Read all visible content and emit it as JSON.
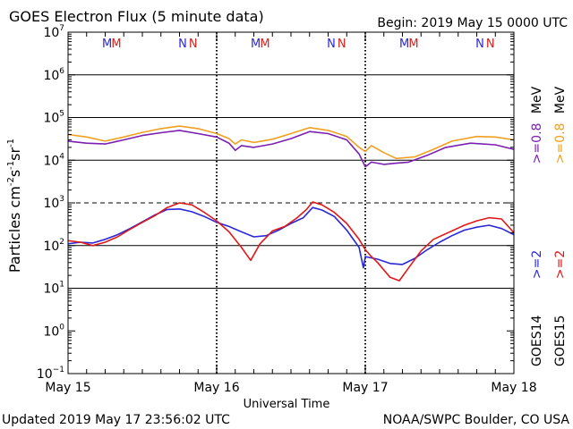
{
  "chart_data": {
    "type": "line",
    "title": "GOES Electron Flux (5 minute data)",
    "begin_label": "Begin: 2019 May 15 0000 UTC",
    "xlabel": "Universal Time",
    "ylabel": "Particles cm",
    "ylabel_exp1": "-2",
    "ylabel_s": "s",
    "ylabel_exp2": "-1",
    "ylabel_sr": "sr",
    "ylabel_exp3": "-1",
    "x_unit": "hours since 2019 May 15 0000 UTC",
    "xlim": [
      0,
      72
    ],
    "x_ticks": [
      {
        "x": 0,
        "label": "May 15"
      },
      {
        "x": 24,
        "label": "May 16"
      },
      {
        "x": 48,
        "label": "May 17"
      },
      {
        "x": 72,
        "label": "May 18"
      }
    ],
    "yscale": "log",
    "ylim": [
      0.1,
      10000000
    ],
    "y_ticks": [
      {
        "exp": -1,
        "label_base": "10",
        "label_exp": "−1"
      },
      {
        "exp": 0,
        "label_base": "10",
        "label_exp": "0"
      },
      {
        "exp": 1,
        "label_base": "10",
        "label_exp": "1"
      },
      {
        "exp": 2,
        "label_base": "10",
        "label_exp": "2"
      },
      {
        "exp": 3,
        "label_base": "10",
        "label_exp": "3"
      },
      {
        "exp": 4,
        "label_base": "10",
        "label_exp": "4"
      },
      {
        "exp": 5,
        "label_base": "10",
        "label_exp": "5"
      },
      {
        "exp": 6,
        "label_base": "10",
        "label_exp": "6"
      },
      {
        "exp": 7,
        "label_base": "10",
        "label_exp": "7"
      }
    ],
    "threshold_dashed": 1000,
    "grid_solid_y": [
      10,
      100,
      10000,
      100000,
      1000000
    ],
    "markers": [
      {
        "x": 6.3,
        "text": "M",
        "color": "#2a28d8"
      },
      {
        "x": 7.8,
        "text": "M",
        "color": "#d8201e"
      },
      {
        "x": 18.5,
        "text": "N",
        "color": "#2a28d8"
      },
      {
        "x": 20.2,
        "text": "N",
        "color": "#d8201e"
      },
      {
        "x": 30.3,
        "text": "M",
        "color": "#2a28d8"
      },
      {
        "x": 31.8,
        "text": "M",
        "color": "#d8201e"
      },
      {
        "x": 42.5,
        "text": "N",
        "color": "#2a28d8"
      },
      {
        "x": 44.2,
        "text": "N",
        "color": "#d8201e"
      },
      {
        "x": 54.3,
        "text": "M",
        "color": "#2a28d8"
      },
      {
        "x": 55.8,
        "text": "M",
        "color": "#d8201e"
      },
      {
        "x": 66.5,
        "text": "N",
        "color": "#2a28d8"
      },
      {
        "x": 68.2,
        "text": "N",
        "color": "#d8201e"
      }
    ],
    "series": [
      {
        "name": ">=0.8 MeV GOES15",
        "color": "#f0a020",
        "points": [
          [
            0,
            40000
          ],
          [
            3,
            35000
          ],
          [
            6,
            28000
          ],
          [
            9,
            35000
          ],
          [
            12,
            45000
          ],
          [
            15,
            55000
          ],
          [
            18,
            63000
          ],
          [
            21,
            55000
          ],
          [
            24,
            42000
          ],
          [
            26,
            32000
          ],
          [
            27,
            24000
          ],
          [
            28,
            30000
          ],
          [
            30,
            26000
          ],
          [
            33,
            31000
          ],
          [
            36,
            42000
          ],
          [
            39,
            58000
          ],
          [
            42,
            50000
          ],
          [
            45,
            36000
          ],
          [
            47,
            20000
          ],
          [
            48,
            16000
          ],
          [
            49,
            22000
          ],
          [
            51,
            15000
          ],
          [
            53,
            11000
          ],
          [
            56,
            12000
          ],
          [
            59,
            18000
          ],
          [
            62,
            28000
          ],
          [
            66,
            36000
          ],
          [
            69,
            35000
          ],
          [
            72,
            30000
          ]
        ]
      },
      {
        "name": ">=0.8 MeV GOES14",
        "color": "#7a1fb0",
        "points": [
          [
            0,
            28000
          ],
          [
            3,
            25000
          ],
          [
            6,
            24000
          ],
          [
            9,
            30000
          ],
          [
            12,
            38000
          ],
          [
            15,
            44000
          ],
          [
            18,
            50000
          ],
          [
            21,
            42000
          ],
          [
            24,
            35000
          ],
          [
            26,
            25000
          ],
          [
            27,
            17000
          ],
          [
            28,
            22000
          ],
          [
            30,
            20000
          ],
          [
            33,
            24000
          ],
          [
            36,
            32000
          ],
          [
            39,
            47000
          ],
          [
            42,
            42000
          ],
          [
            45,
            30000
          ],
          [
            47,
            14000
          ],
          [
            48,
            7000
          ],
          [
            49,
            9000
          ],
          [
            51,
            8000
          ],
          [
            53,
            8500
          ],
          [
            55,
            9000
          ],
          [
            58,
            13000
          ],
          [
            61,
            20000
          ],
          [
            65,
            25000
          ],
          [
            69,
            23000
          ],
          [
            72,
            18000
          ]
        ]
      },
      {
        "name": ">=2 MeV GOES14",
        "color": "#2a28d8",
        "points": [
          [
            0,
            110
          ],
          [
            2,
            120
          ],
          [
            4,
            115
          ],
          [
            6,
            140
          ],
          [
            8,
            180
          ],
          [
            10,
            250
          ],
          [
            12,
            360
          ],
          [
            14,
            520
          ],
          [
            16,
            700
          ],
          [
            18,
            720
          ],
          [
            20,
            620
          ],
          [
            22,
            480
          ],
          [
            24,
            350
          ],
          [
            26,
            280
          ],
          [
            28,
            210
          ],
          [
            30,
            160
          ],
          [
            32,
            170
          ],
          [
            34,
            230
          ],
          [
            36,
            330
          ],
          [
            38,
            450
          ],
          [
            39.5,
            780
          ],
          [
            41,
            680
          ],
          [
            43,
            480
          ],
          [
            45,
            230
          ],
          [
            47,
            90
          ],
          [
            47.7,
            30
          ],
          [
            48,
            55
          ],
          [
            50,
            48
          ],
          [
            52,
            38
          ],
          [
            54,
            36
          ],
          [
            56,
            50
          ],
          [
            58,
            80
          ],
          [
            60,
            120
          ],
          [
            62,
            170
          ],
          [
            64,
            230
          ],
          [
            66,
            270
          ],
          [
            68,
            300
          ],
          [
            70,
            250
          ],
          [
            72,
            180
          ]
        ]
      },
      {
        "name": ">=2 MeV GOES15",
        "color": "#e01818",
        "points": [
          [
            0,
            130
          ],
          [
            2,
            120
          ],
          [
            4,
            100
          ],
          [
            6,
            120
          ],
          [
            8,
            160
          ],
          [
            10,
            240
          ],
          [
            12,
            350
          ],
          [
            14,
            500
          ],
          [
            16,
            780
          ],
          [
            18,
            1000
          ],
          [
            20,
            900
          ],
          [
            22,
            600
          ],
          [
            24,
            380
          ],
          [
            26,
            210
          ],
          [
            28,
            90
          ],
          [
            29.5,
            45
          ],
          [
            31,
            110
          ],
          [
            33,
            220
          ],
          [
            35,
            280
          ],
          [
            37,
            450
          ],
          [
            38.5,
            700
          ],
          [
            39.5,
            1050
          ],
          [
            41,
            900
          ],
          [
            43,
            600
          ],
          [
            45,
            330
          ],
          [
            47,
            140
          ],
          [
            48,
            80
          ],
          [
            49,
            55
          ],
          [
            50,
            40
          ],
          [
            52,
            18
          ],
          [
            53.5,
            15
          ],
          [
            55,
            30
          ],
          [
            57,
            75
          ],
          [
            59,
            140
          ],
          [
            62,
            220
          ],
          [
            64,
            300
          ],
          [
            66,
            380
          ],
          [
            68,
            450
          ],
          [
            70,
            420
          ],
          [
            72,
            200
          ]
        ]
      }
    ]
  },
  "right_labels": {
    "geo14": "GOES14",
    "geo15": "GOES15",
    "ge2_blue": ">=2",
    "ge2_red": ">=2",
    "ge08_purple": ">=0.8",
    "ge08_orange": ">=0.8",
    "mev1": "MeV",
    "mev2": "MeV"
  },
  "footer": {
    "updated": "Updated 2019 May 17 23:56:02 UTC",
    "credit": "NOAA/SWPC Boulder, CO USA"
  }
}
